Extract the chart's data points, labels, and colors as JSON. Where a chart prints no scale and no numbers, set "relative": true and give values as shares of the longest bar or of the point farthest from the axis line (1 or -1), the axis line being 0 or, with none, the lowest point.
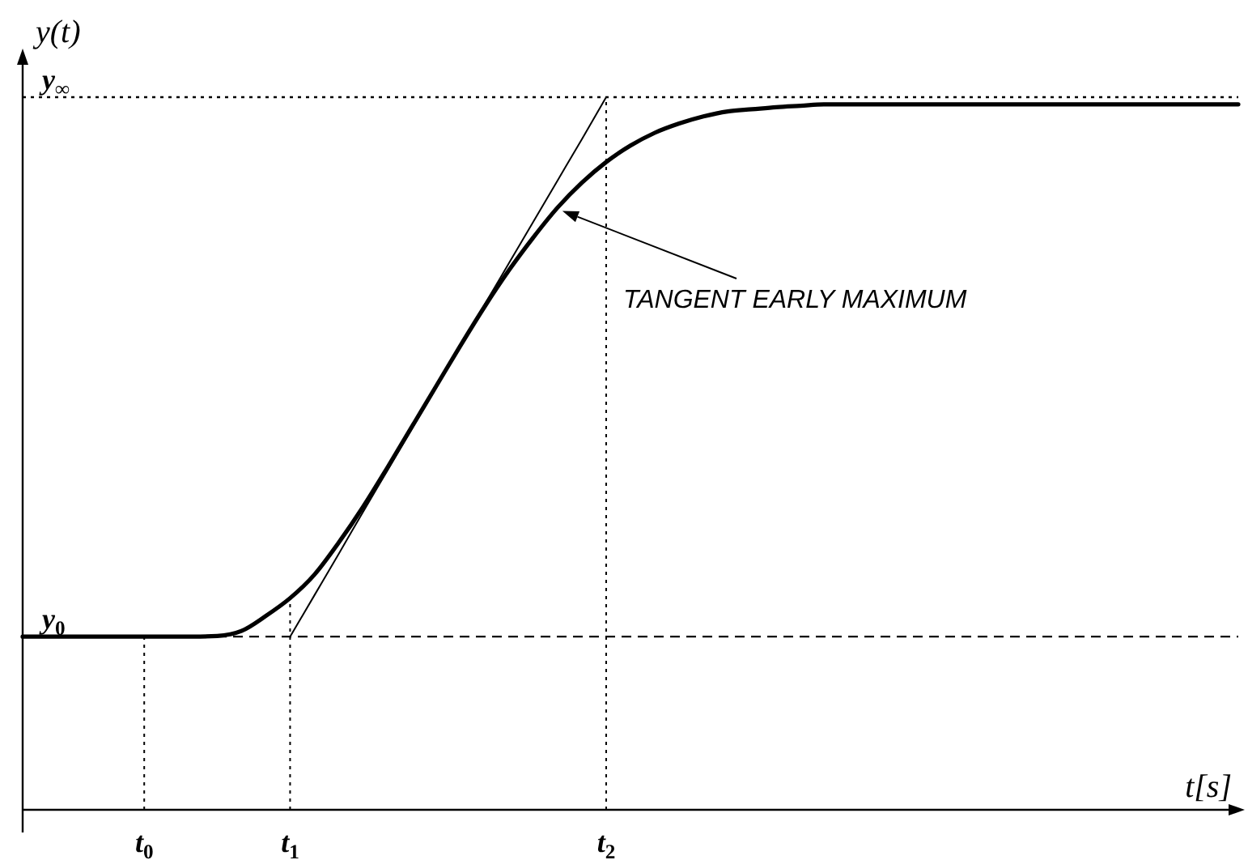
{
  "chart_data": {
    "type": "line",
    "relative": true,
    "xlabel": "t[s]",
    "ylabel": "y(t)",
    "categories": [
      null,
      null,
      null,
      null,
      null,
      "t$_{0}$",
      null,
      null,
      null,
      null,
      null,
      "t$_{1}$",
      null,
      null,
      null,
      null,
      null,
      null,
      null,
      null,
      null,
      null,
      null,
      null,
      "t$_{2}$",
      null,
      null,
      null,
      null,
      null,
      null,
      null,
      null,
      null,
      null,
      null,
      null,
      null,
      null,
      null,
      null,
      null,
      null,
      null,
      null,
      null,
      null,
      null,
      null,
      null,
      null
    ],
    "series": [
      {
        "color": "#000000",
        "values": [
          0.243,
          0.243,
          0.243,
          0.243,
          0.243,
          0.243,
          0.243,
          0.243,
          0.244,
          0.251,
          0.272,
          0.297,
          0.33,
          0.375,
          0.425,
          0.48,
          0.537,
          0.594,
          0.651,
          0.706,
          0.757,
          0.803,
          0.845,
          0.88,
          0.909,
          0.932,
          0.95,
          0.963,
          0.973,
          0.98,
          0.983,
          0.986,
          0.988,
          0.99,
          0.99,
          0.99,
          0.99,
          0.99,
          0.99,
          0.99,
          0.99,
          0.99,
          0.99,
          0.99,
          0.99,
          0.99,
          0.99,
          0.99,
          0.99,
          0.99,
          0.99
        ]
      },
      {
        "color": "#000000",
        "values": [
          null,
          null,
          null,
          null,
          null,
          null,
          null,
          null,
          null,
          null,
          null,
          0.243,
          0.301,
          0.359,
          0.418,
          0.476,
          0.534,
          0.592,
          0.65,
          0.709,
          0.767,
          0.825,
          0.883,
          0.941,
          1.0,
          null,
          null,
          null,
          null,
          null,
          null,
          null,
          null,
          null,
          null,
          null,
          null,
          null,
          null,
          null,
          null,
          null,
          null,
          null,
          null,
          null,
          null,
          null,
          null,
          null,
          null
        ]
      }
    ],
    "ref_lines": [
      {
        "axis": "y",
        "value": 0.243,
        "label": "y$_{0}$",
        "line_style": "dashed"
      },
      {
        "axis": "y",
        "value": 1,
        "label": "y$_{∞}$",
        "line_style": "dotted"
      },
      {
        "axis": "x",
        "value": "t$_{0}$",
        "line_style": "dotted"
      },
      {
        "axis": "x",
        "value": "t$_{1}$",
        "line_style": "dotted"
      },
      {
        "axis": "x",
        "value": "t$_{2}$",
        "line_style": "dotted"
      }
    ],
    "annotations": [
      "TANGENT EARLY MAXIMUM"
    ],
    "marker": "none",
    "line_style": "solid"
  }
}
